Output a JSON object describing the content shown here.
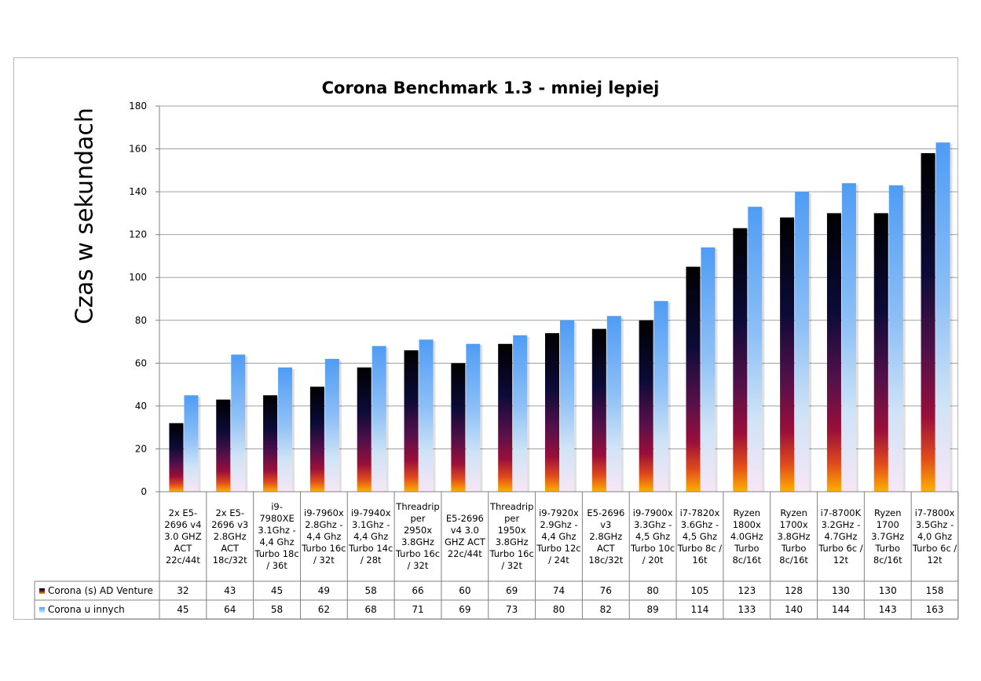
{
  "chart_data": {
    "type": "bar",
    "title": "Corona Benchmark 1.3 - mniej lepiej",
    "ylabel": "Czas w sekundach",
    "ylim": [
      0,
      180
    ],
    "yticks": [
      0,
      20,
      40,
      60,
      80,
      100,
      120,
      140,
      160,
      180
    ],
    "grid": true,
    "legend": "data-table-left",
    "categories": [
      "2x E5-2696 v4 3.0 GHZ ACT 22c/44t",
      "2x E5-2696 v3 2.8GHz ACT 18c/32t",
      "i9-7980XE 3.1Ghz - 4,4 Ghz Turbo 18c / 36t",
      "i9-7960x 2.8Ghz - 4,4 Ghz Turbo 16c / 32t",
      "i9-7940x 3.1Ghz - 4,4 Ghz Turbo 14c / 28t",
      "Threadripper 2950x 3.8GHz Turbo 16c / 32t",
      "E5-2696 v4 3.0 GHZ ACT 22c/44t",
      "Threadripper 1950x 3.8GHz Turbo 16c / 32t",
      "i9-7920x 2.9Ghz - 4,4 Ghz Turbo 12c / 24t",
      "E5-2696 v3 2.8GHz ACT 18c/32t",
      "i9-7900x 3.3Ghz - 4,5 Ghz Turbo 10c / 20t",
      "i7-7820x 3.6Ghz - 4,5 Ghz Turbo 8c / 16t",
      "Ryzen 1800x 4.0GHz Turbo 8c/16t",
      "Ryzen 1700x 3.8GHz Turbo 8c/16t",
      "i7-8700K 3.2GHz - 4.7GHz Turbo 6c / 12t",
      "Ryzen 1700 3.7GHz Turbo 8c/16t",
      "i7-7800x 3.5Ghz - 4,0 Ghz Turbo 6c / 12t"
    ],
    "series": [
      {
        "name": "Corona (s) AD Venture",
        "color": "#0a0a2a",
        "values": [
          32,
          43,
          45,
          49,
          58,
          66,
          60,
          69,
          74,
          76,
          80,
          105,
          123,
          128,
          130,
          130,
          158
        ]
      },
      {
        "name": "Corona u innych",
        "color": "#6aaaf5",
        "values": [
          45,
          64,
          58,
          62,
          68,
          71,
          69,
          73,
          80,
          82,
          89,
          114,
          133,
          140,
          144,
          143,
          163
        ]
      }
    ]
  }
}
